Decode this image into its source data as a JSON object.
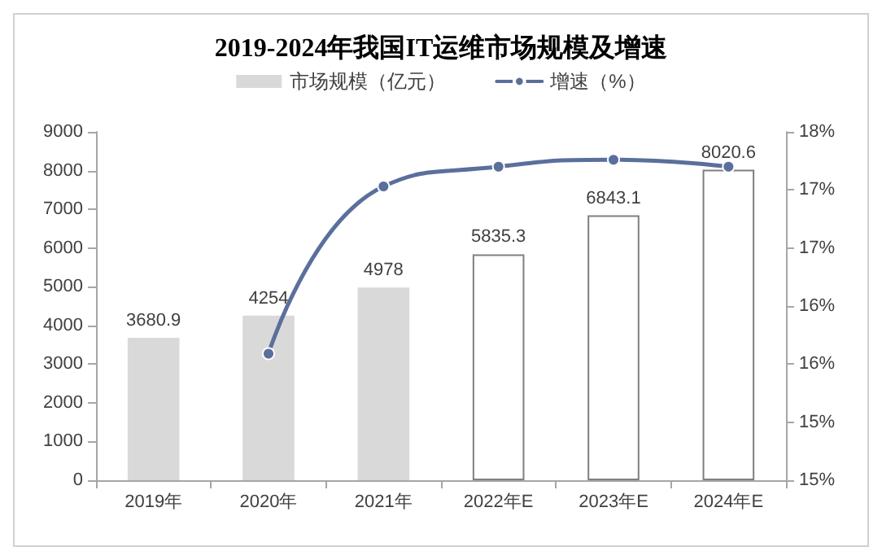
{
  "chart_data": {
    "type": "bar",
    "title": "2019-2024年我国IT运维市场规模及增速",
    "categories": [
      "2019年",
      "2020年",
      "2021年",
      "2022年E",
      "2023年E",
      "2024年E"
    ],
    "series": [
      {
        "name": "市场规模（亿元）",
        "colors": [
          "#d9d9d9",
          "#d9d9d9",
          "#d9d9d9",
          "#ffffff",
          "#ffffff",
          "#ffffff"
        ],
        "values": [
          3680.9,
          4254,
          4978,
          5835.3,
          6843.1,
          8020.6
        ],
        "data_labels": true
      },
      {
        "name": "增速（%）",
        "type": "line",
        "axis": "y2",
        "color": "#5a6f9c",
        "values": [
          null,
          16.09,
          17.53,
          17.7,
          17.76,
          17.7
        ],
        "marker": "circle"
      }
    ],
    "ylim": [
      0,
      9000
    ],
    "yticks": [
      0,
      1000,
      2000,
      3000,
      4000,
      5000,
      6000,
      7000,
      8000,
      9000
    ],
    "y2lim": [
      15,
      18
    ],
    "y2ticks": [
      {
        "value": 15,
        "label": "15%"
      },
      {
        "value": 15.5,
        "label": "15%"
      },
      {
        "value": 16,
        "label": "16%"
      },
      {
        "value": 16.5,
        "label": "16%"
      },
      {
        "value": 17,
        "label": "17%"
      },
      {
        "value": 17.5,
        "label": "17%"
      },
      {
        "value": 18,
        "label": "18%"
      }
    ],
    "legend": "top",
    "grid": false
  }
}
